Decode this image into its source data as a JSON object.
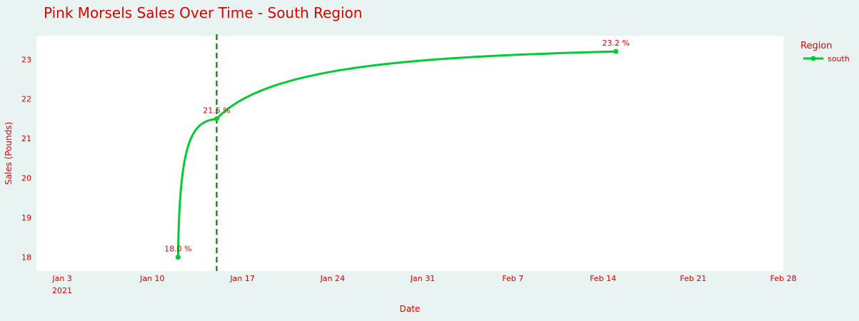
{
  "chart_data": {
    "type": "line",
    "title": "Pink Morsels Sales Over Time - South  Region",
    "xlabel": "Date",
    "ylabel": "Sales (Pounds)",
    "x_ticks": [
      "Jan 3",
      "Jan 10",
      "Jan 17",
      "Jan 24",
      "Jan 31",
      "Feb 7",
      "Feb 14",
      "Feb 21",
      "Feb 28"
    ],
    "x_tick_dates": [
      "2021-01-03",
      "2021-01-10",
      "2021-01-17",
      "2021-01-24",
      "2021-01-31",
      "2021-02-07",
      "2021-02-14",
      "2021-02-21",
      "2021-02-28"
    ],
    "x_year_label": "2021",
    "x_range": [
      "2021-01-01",
      "2021-02-28"
    ],
    "y_ticks": [
      18,
      19,
      20,
      21,
      22,
      23
    ],
    "ylim": [
      17.65,
      23.6
    ],
    "legend_title": "Region",
    "legend_position": "right",
    "series": [
      {
        "name": "south",
        "color": "#00cc33",
        "x": [
          "2021-01-12",
          "2021-01-15",
          "2021-02-15"
        ],
        "y": [
          18.0,
          21.5,
          23.2
        ],
        "labels": [
          "18.0 %",
          "21.5 %",
          "23.2 %"
        ]
      }
    ],
    "vline": {
      "x": "2021-01-15",
      "color": "#0a7a12",
      "style": "dashed"
    },
    "grid": false
  }
}
